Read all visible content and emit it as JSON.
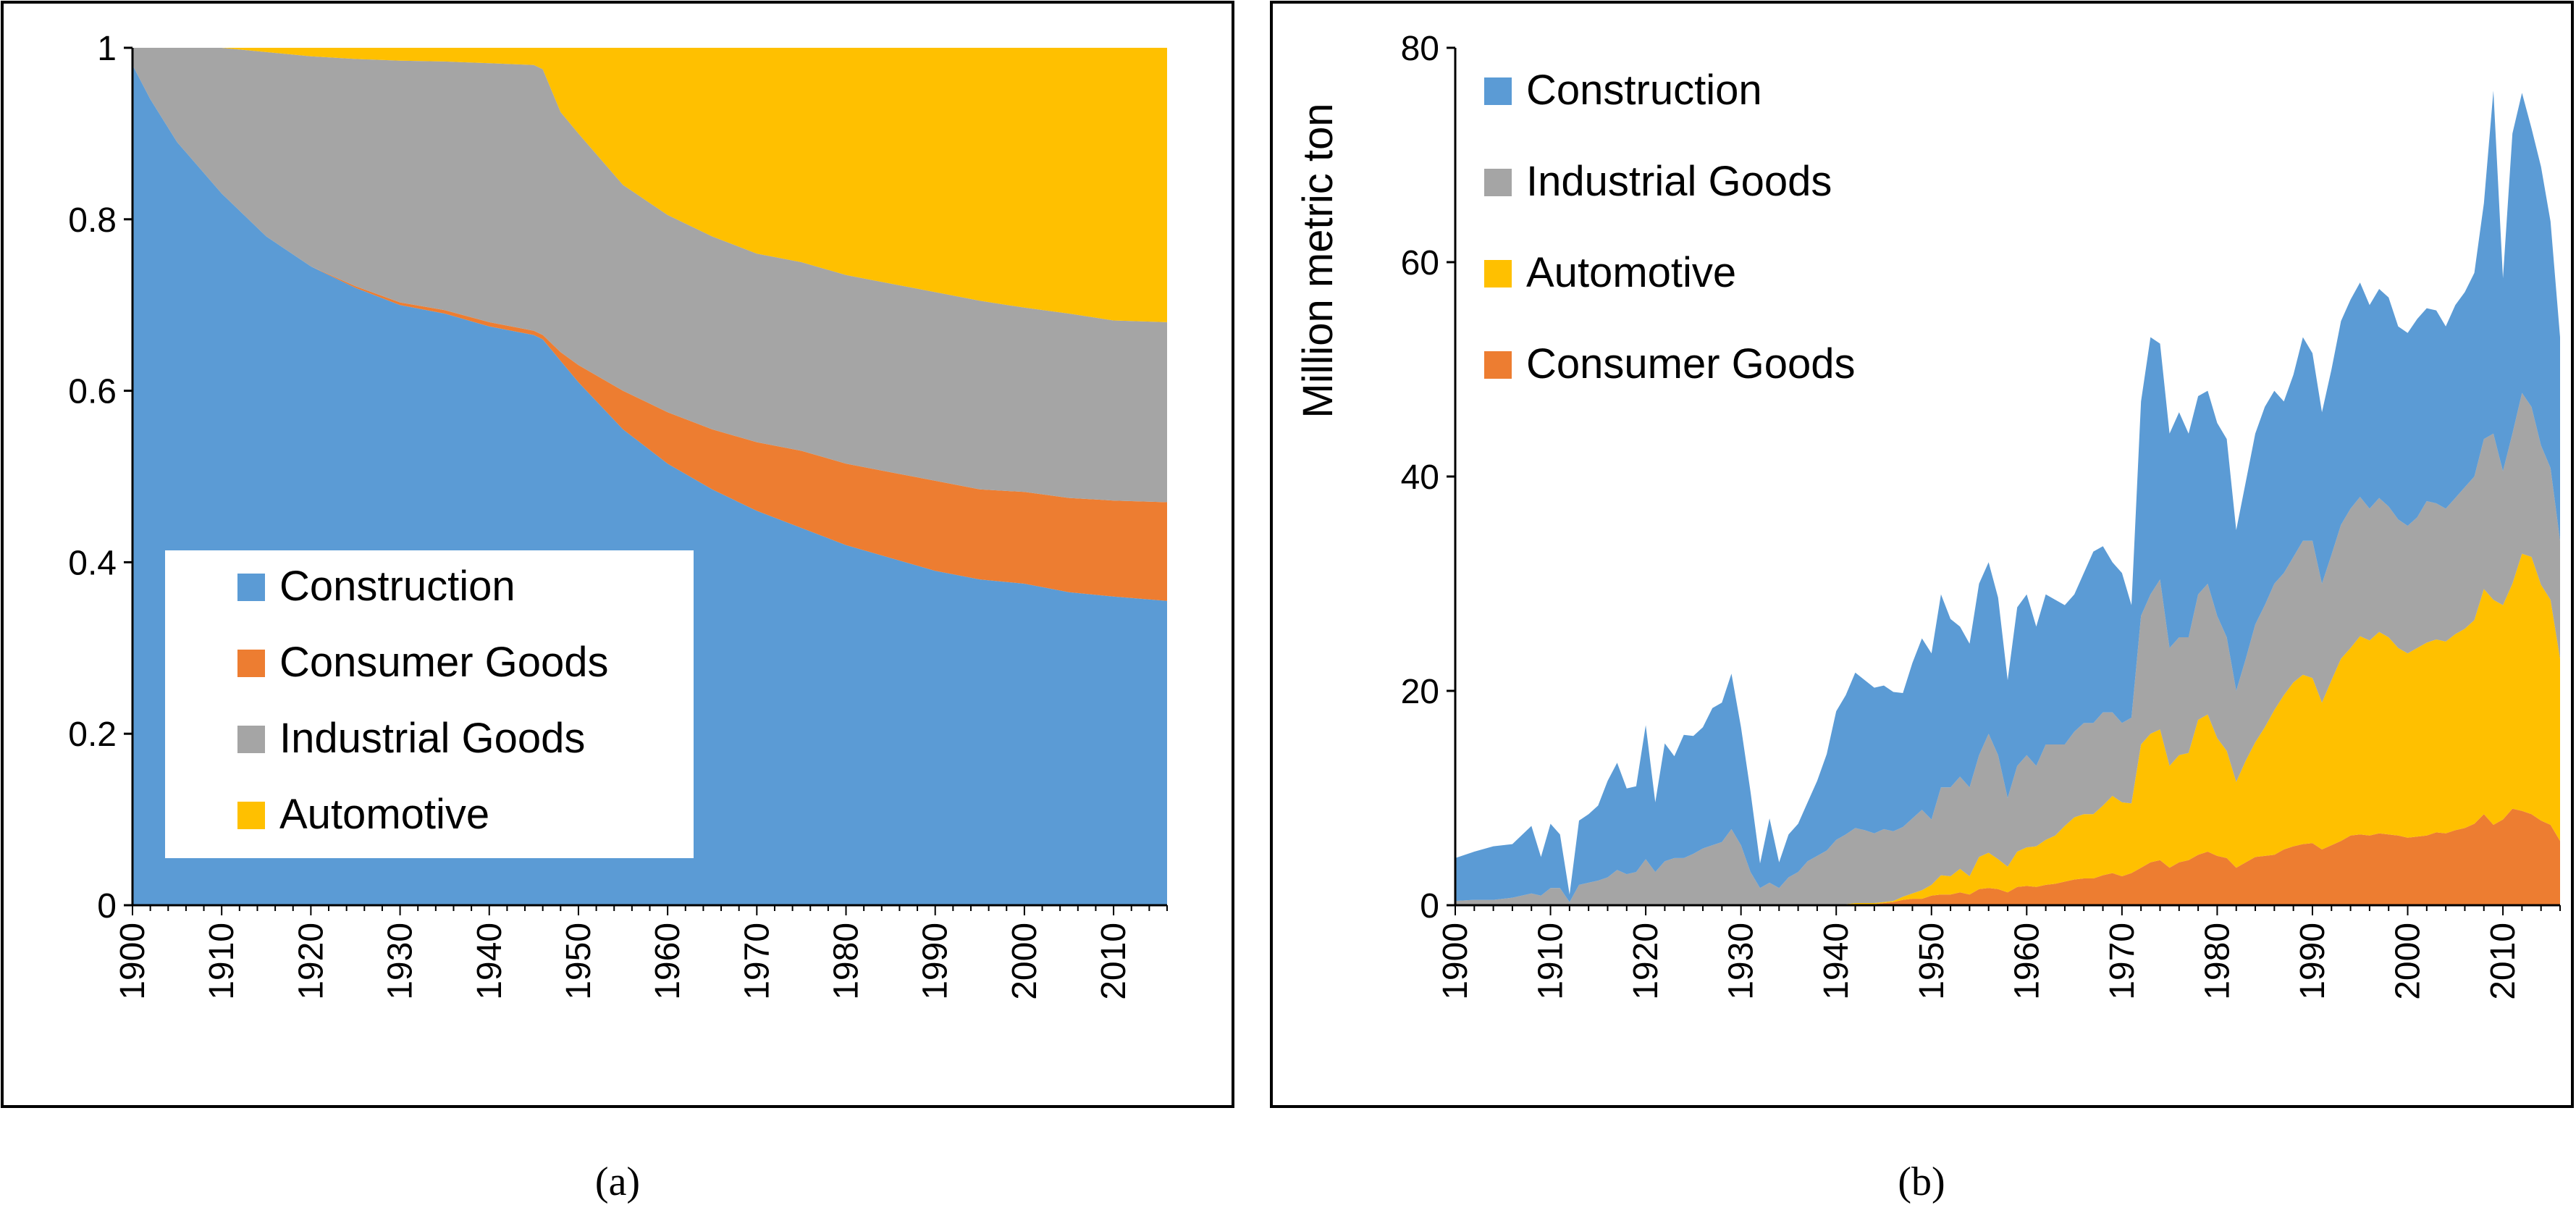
{
  "colors": {
    "construction": "#5b9bd5",
    "consumer": "#ed7d31",
    "industrial": "#a5a5a5",
    "automotive": "#ffc000"
  },
  "panels": {
    "a": {
      "caption": "(a)"
    },
    "b": {
      "caption": "(b)"
    }
  },
  "chart_data": [
    {
      "type": "area",
      "panel": "a",
      "stacked": true,
      "normalized": true,
      "xlim": [
        1900,
        2016
      ],
      "ylim": [
        0,
        1
      ],
      "x_ticks": [
        "1900",
        "1910",
        "1920",
        "1930",
        "1940",
        "1950",
        "1960",
        "1970",
        "1980",
        "1990",
        "2000",
        "2010"
      ],
      "y_ticks": [
        "0",
        "0.2",
        "0.4",
        "0.6",
        "0.8",
        "1"
      ],
      "xlabel": "",
      "ylabel": "",
      "legend": {
        "position": "bottom-left",
        "entries": [
          "Construction",
          "Consumer Goods",
          "Industrial Goods",
          "Automotive"
        ]
      },
      "x": [
        1900,
        1902,
        1905,
        1910,
        1915,
        1920,
        1925,
        1930,
        1935,
        1940,
        1945,
        1946,
        1948,
        1950,
        1955,
        1960,
        1965,
        1970,
        1975,
        1980,
        1985,
        1990,
        1995,
        2000,
        2005,
        2010,
        2016
      ],
      "series": [
        {
          "name": "Construction",
          "values": [
            0.98,
            0.94,
            0.89,
            0.83,
            0.78,
            0.745,
            0.72,
            0.7,
            0.69,
            0.675,
            0.665,
            0.66,
            0.635,
            0.61,
            0.555,
            0.515,
            0.485,
            0.46,
            0.44,
            0.42,
            0.405,
            0.39,
            0.38,
            0.375,
            0.365,
            0.36,
            0.355
          ]
        },
        {
          "name": "Consumer Goods",
          "values": [
            0,
            0,
            0,
            0,
            0,
            0,
            0.002,
            0.003,
            0.004,
            0.005,
            0.005,
            0.005,
            0.01,
            0.02,
            0.045,
            0.06,
            0.07,
            0.08,
            0.09,
            0.095,
            0.1,
            0.105,
            0.105,
            0.107,
            0.11,
            0.112,
            0.115
          ]
        },
        {
          "name": "Industrial Goods",
          "values": [
            0.02,
            0.06,
            0.11,
            0.17,
            0.215,
            0.245,
            0.265,
            0.282,
            0.29,
            0.302,
            0.31,
            0.31,
            0.28,
            0.27,
            0.24,
            0.23,
            0.225,
            0.22,
            0.22,
            0.22,
            0.22,
            0.22,
            0.22,
            0.215,
            0.215,
            0.21,
            0.21
          ]
        },
        {
          "name": "Automotive",
          "values": [
            0,
            0,
            0,
            0,
            0.005,
            0.01,
            0.013,
            0.015,
            0.016,
            0.018,
            0.02,
            0.025,
            0.075,
            0.1,
            0.16,
            0.195,
            0.22,
            0.24,
            0.25,
            0.265,
            0.275,
            0.285,
            0.295,
            0.303,
            0.31,
            0.318,
            0.32
          ]
        }
      ]
    },
    {
      "type": "area",
      "panel": "b",
      "stacked": true,
      "xlim": [
        1900,
        2016
      ],
      "ylim": [
        0,
        80
      ],
      "x_ticks": [
        "1900",
        "1910",
        "1920",
        "1930",
        "1940",
        "1950",
        "1960",
        "1970",
        "1980",
        "1990",
        "2000",
        "2010"
      ],
      "y_ticks": [
        "0",
        "20",
        "40",
        "60",
        "80"
      ],
      "xlabel": "",
      "ylabel": "Million metric ton",
      "legend": {
        "position": "top-left",
        "entries": [
          "Construction",
          "Industrial Goods",
          "Automotive",
          "Consumer Goods"
        ]
      },
      "x": [
        1900,
        1902,
        1904,
        1906,
        1908,
        1909,
        1910,
        1911,
        1912,
        1913,
        1914,
        1915,
        1916,
        1917,
        1918,
        1919,
        1920,
        1921,
        1922,
        1923,
        1924,
        1925,
        1926,
        1927,
        1928,
        1929,
        1930,
        1931,
        1932,
        1933,
        1934,
        1935,
        1936,
        1937,
        1938,
        1939,
        1940,
        1941,
        1942,
        1943,
        1944,
        1945,
        1946,
        1947,
        1948,
        1949,
        1950,
        1951,
        1952,
        1953,
        1954,
        1955,
        1956,
        1957,
        1958,
        1959,
        1960,
        1961,
        1962,
        1963,
        1964,
        1965,
        1966,
        1967,
        1968,
        1969,
        1970,
        1971,
        1972,
        1973,
        1974,
        1975,
        1976,
        1977,
        1978,
        1979,
        1980,
        1981,
        1982,
        1983,
        1984,
        1985,
        1986,
        1987,
        1988,
        1989,
        1990,
        1991,
        1992,
        1993,
        1994,
        1995,
        1996,
        1997,
        1998,
        1999,
        2000,
        2001,
        2002,
        2003,
        2004,
        2005,
        2006,
        2007,
        2008,
        2009,
        2010,
        2011,
        2012,
        2013,
        2014,
        2015,
        2016
      ],
      "series": [
        {
          "name": "Consumer Goods",
          "values": [
            0.1,
            0.1,
            0.1,
            0.1,
            0.1,
            0.1,
            0.1,
            0.1,
            0.1,
            0.1,
            0.1,
            0.1,
            0.1,
            0.1,
            0.1,
            0.1,
            0.1,
            0.1,
            0.1,
            0.1,
            0.1,
            0.1,
            0.1,
            0.1,
            0.1,
            0.1,
            0.1,
            0.1,
            0.1,
            0.1,
            0.1,
            0.1,
            0.1,
            0.1,
            0.1,
            0.1,
            0.1,
            0.1,
            0.1,
            0.1,
            0.1,
            0.2,
            0.3,
            0.5,
            0.6,
            0.6,
            0.9,
            1.0,
            1.0,
            1.2,
            1.0,
            1.5,
            1.6,
            1.5,
            1.2,
            1.7,
            1.8,
            1.7,
            1.9,
            2.0,
            2.2,
            2.4,
            2.5,
            2.5,
            2.8,
            3.0,
            2.7,
            3.0,
            3.5,
            4.0,
            4.2,
            3.5,
            4.0,
            4.2,
            4.7,
            5.0,
            4.6,
            4.4,
            3.5,
            4.0,
            4.5,
            4.6,
            4.7,
            5.2,
            5.5,
            5.7,
            5.8,
            5.2,
            5.6,
            6.0,
            6.5,
            6.6,
            6.5,
            6.7,
            6.6,
            6.5,
            6.3,
            6.4,
            6.5,
            6.8,
            6.7,
            7.0,
            7.2,
            7.6,
            8.5,
            7.5,
            8.0,
            9.0,
            8.8,
            8.5,
            7.9,
            7.5,
            6.0
          ]
        },
        {
          "name": "Automotive",
          "values": [
            0,
            0,
            0,
            0,
            0,
            0,
            0,
            0,
            0,
            0,
            0,
            0,
            0,
            0,
            0,
            0,
            0,
            0,
            0,
            0,
            0,
            0,
            0,
            0,
            0,
            0,
            0,
            0,
            0,
            0,
            0,
            0,
            0,
            0,
            0,
            0,
            0,
            0,
            0.1,
            0.1,
            0.1,
            0.1,
            0.1,
            0.3,
            0.5,
            0.8,
            1.0,
            1.8,
            1.7,
            2.2,
            1.7,
            3.0,
            3.3,
            2.8,
            2.4,
            3.3,
            3.6,
            3.8,
            4.2,
            4.5,
            5.2,
            5.8,
            6.0,
            6.0,
            6.5,
            7.2,
            6.9,
            6.5,
            11.5,
            12.0,
            12.2,
            9.5,
            10.0,
            10.0,
            12.6,
            12.8,
            11.0,
            10.0,
            8.0,
            9.5,
            10.7,
            12.0,
            13.5,
            14.4,
            15.3,
            15.8,
            15.4,
            13.7,
            15.4,
            17.0,
            17.5,
            18.5,
            18.2,
            18.8,
            18.4,
            17.5,
            17.2,
            17.6,
            18.0,
            18.0,
            17.9,
            18.3,
            18.6,
            19.0,
            21.0,
            21.0,
            20.0,
            21.0,
            24.0,
            24.0,
            22.0,
            21.0,
            17.0
          ]
        },
        {
          "name": "Industrial Goods",
          "values": [
            0.3,
            0.4,
            0.4,
            0.6,
            1.0,
            0.8,
            1.5,
            1.5,
            0.2,
            1.8,
            2.0,
            2.2,
            2.5,
            3.2,
            2.8,
            3.0,
            4.2,
            3.0,
            4.0,
            4.3,
            4.3,
            4.7,
            5.2,
            5.5,
            5.8,
            7.0,
            5.5,
            3.0,
            1.5,
            2.0,
            1.5,
            2.5,
            3.0,
            4.0,
            4.5,
            5.0,
            6.0,
            6.5,
            7.0,
            6.8,
            6.5,
            6.8,
            6.5,
            6.5,
            7.0,
            7.5,
            6.1,
            8.2,
            8.3,
            8.6,
            8.3,
            9.5,
            11.1,
            9.7,
            6.4,
            8.0,
            8.6,
            7.5,
            8.9,
            8.5,
            7.6,
            8.0,
            8.5,
            8.5,
            8.7,
            7.8,
            7.4,
            8.0,
            12.0,
            13.0,
            14.0,
            11.0,
            11.0,
            10.8,
            11.7,
            12.2,
            11.4,
            10.6,
            8.5,
            9.5,
            11.0,
            11.4,
            11.8,
            11.4,
            11.7,
            12.5,
            12.8,
            11.1,
            11.7,
            12.5,
            13.0,
            13.0,
            12.3,
            12.5,
            12.2,
            12.0,
            11.9,
            12.2,
            13.2,
            12.7,
            12.4,
            12.7,
            13.2,
            13.4,
            14.0,
            15.5,
            12.5,
            14.0,
            15.0,
            14.0,
            13.0,
            12.3,
            11.0
          ]
        },
        {
          "name": "Construction",
          "values": [
            4.0,
            4.5,
            5.0,
            5.0,
            6.3,
            3.6,
            6.0,
            5.0,
            0.7,
            6.0,
            6.4,
            7.0,
            9.0,
            10.0,
            8.0,
            8.0,
            12.5,
            6.5,
            11.0,
            9.5,
            11.5,
            11.0,
            11.3,
            12.8,
            13.0,
            14.5,
            11.0,
            7.5,
            2.3,
            6.0,
            2.4,
            4.0,
            4.5,
            5.5,
            7.0,
            9.0,
            12.0,
            13.0,
            14.5,
            14.0,
            13.6,
            13.4,
            13.0,
            12.5,
            14.5,
            16.0,
            15.5,
            18.0,
            15.7,
            14.0,
            13.4,
            16.0,
            16.0,
            14.7,
            11.0,
            14.8,
            15.0,
            13.0,
            14.0,
            13.5,
            13.0,
            12.8,
            14.0,
            16.0,
            15.5,
            14.0,
            14.0,
            10.5,
            20.0,
            24.0,
            22.0,
            20.0,
            21.0,
            19.0,
            18.5,
            18.0,
            18.0,
            18.5,
            15.0,
            16.5,
            17.8,
            18.5,
            18.0,
            16.0,
            17.0,
            19.0,
            17.5,
            16.0,
            17.3,
            19.0,
            19.5,
            20.0,
            19.0,
            19.5,
            19.5,
            18.0,
            18.0,
            18.5,
            18.0,
            18.0,
            17.0,
            18.0,
            18.2,
            19.0,
            22.0,
            32.0,
            18.0,
            28.0,
            28.0,
            26.0,
            26.0,
            23.0,
            19.0
          ]
        }
      ]
    }
  ]
}
